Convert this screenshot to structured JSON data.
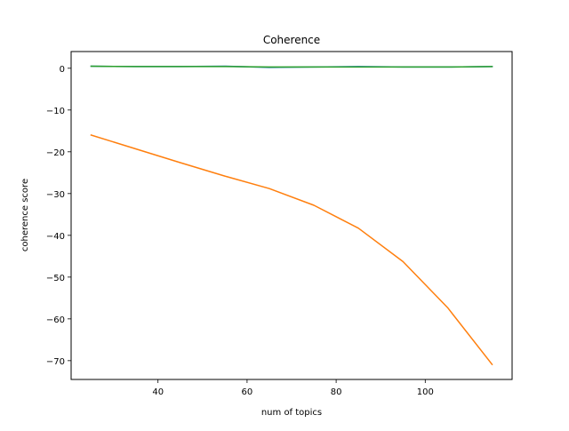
{
  "chart_data": {
    "type": "line",
    "title": "Coherence",
    "xlabel": "num of topics",
    "ylabel": "coherence score",
    "xlim": [
      20.5,
      119.5
    ],
    "ylim": [
      -74.5,
      4.0
    ],
    "xticks": [
      40,
      60,
      80,
      100
    ],
    "yticks": [
      0,
      -10,
      -20,
      -30,
      -40,
      -50,
      -60,
      -70
    ],
    "xtick_labels": [
      "40",
      "60",
      "80",
      "100"
    ],
    "ytick_labels": [
      "0",
      "−10",
      "−20",
      "−30",
      "−40",
      "−50",
      "−60",
      "−70"
    ],
    "grid": false,
    "x": [
      25,
      35,
      45,
      55,
      65,
      75,
      85,
      95,
      105,
      115
    ],
    "series": [
      {
        "color": "#1f77b4",
        "values": [
          0.5,
          0.4,
          0.4,
          0.5,
          0.2,
          0.3,
          0.4,
          0.3,
          0.3,
          0.4
        ]
      },
      {
        "color": "#ff7f0e",
        "values": [
          -16.0,
          -19.3,
          -22.6,
          -25.8,
          -28.8,
          -32.8,
          -38.3,
          -46.3,
          -57.3,
          -70.9
        ]
      },
      {
        "color": "#2ca02c",
        "values": [
          0.5,
          0.4,
          0.4,
          0.4,
          0.3,
          0.3,
          0.3,
          0.3,
          0.3,
          0.4
        ]
      }
    ]
  }
}
